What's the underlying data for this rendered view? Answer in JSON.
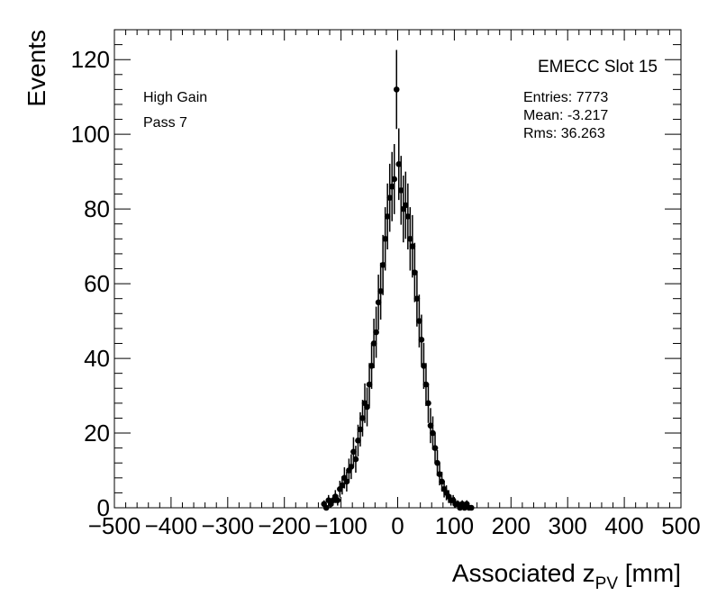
{
  "chart_data": {
    "type": "scatter",
    "title": "EMECC Slot 15",
    "xlabel": "Associated z",
    "xlabel_sub": "PV",
    "xlabel_unit": " [mm]",
    "ylabel": "Events",
    "xlim": [
      -500,
      500
    ],
    "ylim": [
      0,
      128
    ],
    "x_ticks": [
      -500,
      -400,
      -300,
      -200,
      -100,
      0,
      100,
      200,
      300,
      400,
      500
    ],
    "y_ticks": [
      0,
      20,
      40,
      60,
      80,
      100,
      120
    ],
    "grid": false,
    "legend": "none",
    "annotations": [
      {
        "id": "gain",
        "text": "High Gain"
      },
      {
        "id": "pass",
        "text": "Pass 7"
      }
    ],
    "stats": {
      "entries": "Entries: 7773",
      "mean": "Mean: -3.217",
      "rms": "Rms: 36.263"
    },
    "series": [
      {
        "marker_color": "#000000",
        "x": [
          -130,
          -126,
          -122,
          -118,
          -114,
          -110,
          -106,
          -102,
          -98,
          -94,
          -90,
          -86,
          -82,
          -78,
          -74,
          -70,
          -66,
          -62,
          -58,
          -54,
          -50,
          -46,
          -42,
          -38,
          -34,
          -30,
          -26,
          -22,
          -18,
          -14,
          -10,
          -6,
          -2,
          2,
          6,
          10,
          14,
          18,
          22,
          26,
          30,
          34,
          38,
          42,
          46,
          50,
          54,
          58,
          62,
          66,
          70,
          74,
          78,
          82,
          86,
          90,
          94,
          98,
          102,
          106,
          110,
          114,
          118,
          122,
          126,
          130
        ],
        "y": [
          1,
          0,
          2,
          1,
          2,
          3,
          2,
          5,
          6,
          8,
          7,
          10,
          11,
          15,
          13,
          18,
          21,
          24,
          28,
          27,
          33,
          38,
          44,
          47,
          55,
          58,
          65,
          72,
          78,
          83,
          86,
          88,
          112,
          92,
          85,
          80,
          81,
          78,
          72,
          70,
          63,
          56,
          50,
          45,
          38,
          33,
          28,
          22,
          20,
          16,
          12,
          9,
          7,
          5,
          4,
          3,
          2,
          2,
          1,
          1,
          0,
          1,
          0,
          1,
          0,
          0
        ]
      }
    ]
  }
}
